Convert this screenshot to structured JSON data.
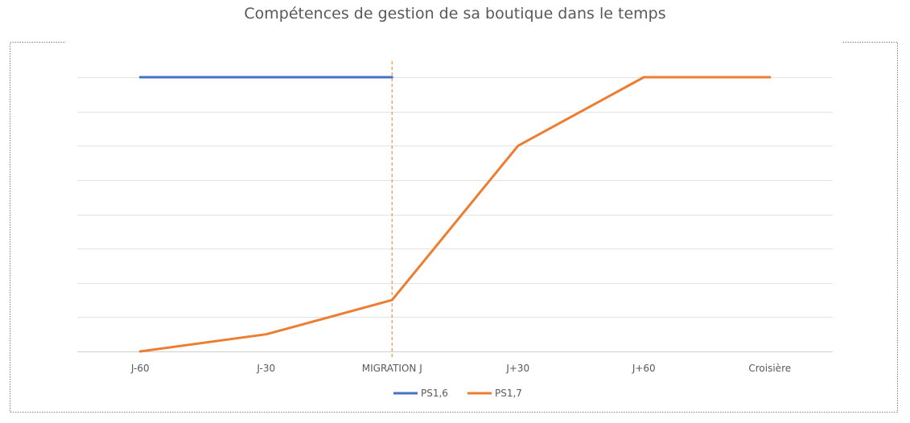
{
  "chart_data": {
    "type": "line",
    "title": "Compétences de gestion de sa boutique dans le temps",
    "xlabel": "",
    "ylabel": "",
    "categories": [
      "J-60",
      "J-30",
      "MIGRATION J",
      "J+30",
      "J+60",
      "Croisière"
    ],
    "ylim": [
      0,
      8
    ],
    "y_ticks_shown": false,
    "grid": true,
    "legend_position": "bottom",
    "series": [
      {
        "name": "PS1,6",
        "color": "#4472C4",
        "values": [
          8,
          8,
          8,
          null,
          null,
          null
        ]
      },
      {
        "name": "PS1,7",
        "color": "#ED7D31",
        "values": [
          0,
          0.5,
          1.5,
          6,
          8,
          8
        ]
      }
    ],
    "marker_line": {
      "category": "MIGRATION J",
      "color": "#ED7D31",
      "style": "dashed"
    }
  }
}
